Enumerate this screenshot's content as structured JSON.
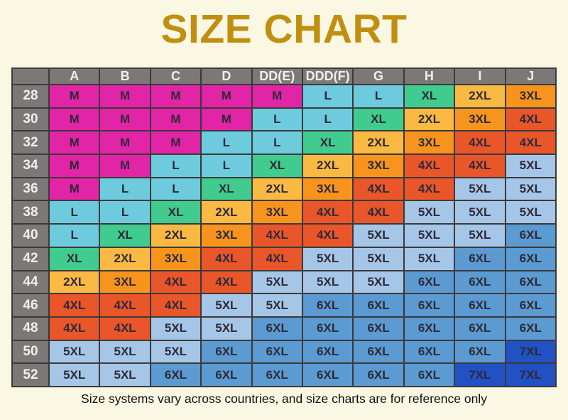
{
  "page": {
    "title": "SIZE CHART",
    "footer_note": "Size systems vary across countries, and size charts are for reference only"
  },
  "colors": {
    "page_background": "#FAF7E3",
    "title": "#C18F0F",
    "header_background": "#7B7877",
    "header_text": "#F2F0EF",
    "cell_text": "#2D2A38",
    "grid_border": "#3A3A3A",
    "sizes": {
      "M": "#E224A6",
      "L": "#6ECBDD",
      "XL": "#41CB8E",
      "2XL": "#F9B943",
      "3XL": "#F7941E",
      "4XL": "#E9562A",
      "5XL": "#A6C6E8",
      "6XL": "#5C9AD2",
      "7XL": "#2151C3"
    }
  },
  "chart_data": {
    "type": "table",
    "title": "SIZE CHART",
    "columns": [
      "",
      "A",
      "B",
      "C",
      "D",
      "DD(E)",
      "DDD(F)",
      "G",
      "H",
      "I",
      "J"
    ],
    "rows": [
      {
        "band": "28",
        "sizes": [
          "M",
          "M",
          "M",
          "M",
          "M",
          "L",
          "L",
          "XL",
          "2XL",
          "3XL"
        ]
      },
      {
        "band": "30",
        "sizes": [
          "M",
          "M",
          "M",
          "M",
          "L",
          "L",
          "XL",
          "2XL",
          "3XL",
          "4XL"
        ]
      },
      {
        "band": "32",
        "sizes": [
          "M",
          "M",
          "M",
          "L",
          "L",
          "XL",
          "2XL",
          "3XL",
          "4XL",
          "4XL"
        ]
      },
      {
        "band": "34",
        "sizes": [
          "M",
          "M",
          "L",
          "L",
          "XL",
          "2XL",
          "3XL",
          "4XL",
          "4XL",
          "5XL"
        ]
      },
      {
        "band": "36",
        "sizes": [
          "M",
          "L",
          "L",
          "XL",
          "2XL",
          "3XL",
          "4XL",
          "4XL",
          "5XL",
          "5XL"
        ]
      },
      {
        "band": "38",
        "sizes": [
          "L",
          "L",
          "XL",
          "2XL",
          "3XL",
          "4XL",
          "4XL",
          "5XL",
          "5XL",
          "5XL"
        ]
      },
      {
        "band": "40",
        "sizes": [
          "L",
          "XL",
          "2XL",
          "3XL",
          "4XL",
          "4XL",
          "5XL",
          "5XL",
          "5XL",
          "6XL"
        ]
      },
      {
        "band": "42",
        "sizes": [
          "XL",
          "2XL",
          "3XL",
          "4XL",
          "4XL",
          "5XL",
          "5XL",
          "5XL",
          "6XL",
          "6XL"
        ]
      },
      {
        "band": "44",
        "sizes": [
          "2XL",
          "3XL",
          "4XL",
          "4XL",
          "5XL",
          "5XL",
          "5XL",
          "6XL",
          "6XL",
          "6XL"
        ]
      },
      {
        "band": "46",
        "sizes": [
          "4XL",
          "4XL",
          "4XL",
          "5XL",
          "5XL",
          "6XL",
          "6XL",
          "6XL",
          "6XL",
          "6XL"
        ]
      },
      {
        "band": "48",
        "sizes": [
          "4XL",
          "4XL",
          "5XL",
          "5XL",
          "6XL",
          "6XL",
          "6XL",
          "6XL",
          "6XL",
          "6XL"
        ]
      },
      {
        "band": "50",
        "sizes": [
          "5XL",
          "5XL",
          "5XL",
          "6XL",
          "6XL",
          "6XL",
          "6XL",
          "6XL",
          "6XL",
          "7XL"
        ]
      },
      {
        "band": "52",
        "sizes": [
          "5XL",
          "5XL",
          "6XL",
          "6XL",
          "6XL",
          "6XL",
          "6XL",
          "6XL",
          "7XL",
          "7XL"
        ]
      }
    ],
    "legend_position": "none",
    "grid": true
  }
}
